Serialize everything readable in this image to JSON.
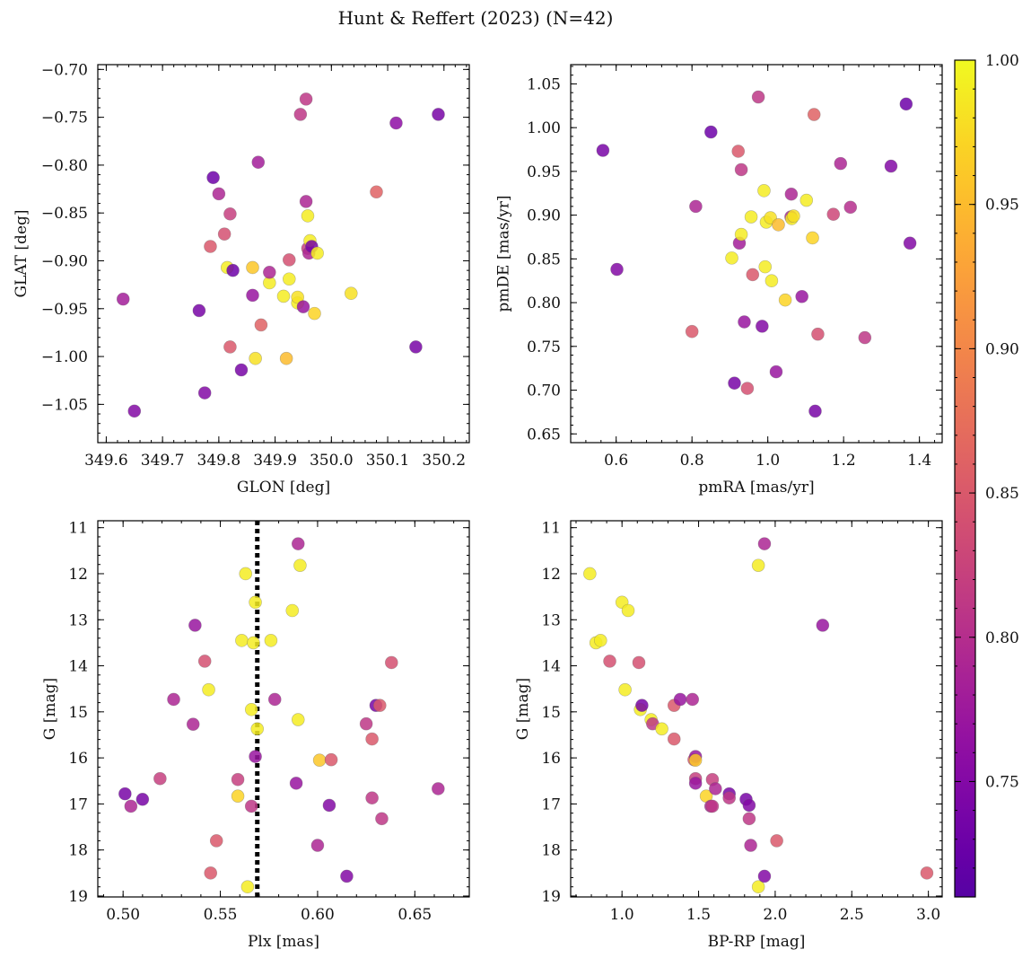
{
  "figure": {
    "title": "Hunt & Reffert (2023) (N=42)"
  },
  "colorbar": {
    "colormap": "plasma",
    "range": [
      0.71,
      1.0
    ],
    "ticks": [
      0.75,
      0.8,
      0.85,
      0.9,
      0.95,
      1.0
    ],
    "tick_labels": [
      "0.75",
      "0.80",
      "0.85",
      "0.90",
      "0.95",
      "1.00"
    ]
  },
  "chart_data": [
    {
      "type": "scatter",
      "id": "glon-glat",
      "xlabel": "GLON [deg]",
      "ylabel": "GLAT [deg]",
      "xlim": [
        349.585,
        350.245
      ],
      "ylim": [
        -1.09,
        -0.695
      ],
      "y_inverted": false,
      "xticks": [
        349.6,
        349.7,
        349.8,
        349.9,
        350.0,
        350.1,
        350.2
      ],
      "xtick_labels": [
        "349.6",
        "349.7",
        "349.8",
        "349.9",
        "350.0",
        "350.1",
        "350.2"
      ],
      "yticks": [
        -0.7,
        -0.75,
        -0.8,
        -0.85,
        -0.9,
        -0.95,
        -1.0,
        -1.05
      ],
      "ytick_labels": [
        "−0.70",
        "−0.75",
        "−0.80",
        "−0.85",
        "−0.90",
        "−0.95",
        "−1.00",
        "−1.05"
      ],
      "points": [
        {
          "x": 349.63,
          "y": -0.94,
          "c": 0.78
        },
        {
          "x": 349.65,
          "y": -1.057,
          "c": 0.75
        },
        {
          "x": 349.765,
          "y": -0.952,
          "c": 0.74
        },
        {
          "x": 349.775,
          "y": -1.038,
          "c": 0.75
        },
        {
          "x": 349.785,
          "y": -0.885,
          "c": 0.85
        },
        {
          "x": 349.79,
          "y": -0.813,
          "c": 0.73
        },
        {
          "x": 349.8,
          "y": -0.83,
          "c": 0.79
        },
        {
          "x": 349.81,
          "y": -0.872,
          "c": 0.84
        },
        {
          "x": 349.815,
          "y": -0.907,
          "c": 0.99
        },
        {
          "x": 349.82,
          "y": -0.851,
          "c": 0.82
        },
        {
          "x": 349.82,
          "y": -0.99,
          "c": 0.85
        },
        {
          "x": 349.825,
          "y": -0.91,
          "c": 0.73
        },
        {
          "x": 349.84,
          "y": -1.014,
          "c": 0.74
        },
        {
          "x": 349.86,
          "y": -0.936,
          "c": 0.77
        },
        {
          "x": 349.86,
          "y": -0.907,
          "c": 0.96
        },
        {
          "x": 349.865,
          "y": -1.002,
          "c": 0.98
        },
        {
          "x": 349.87,
          "y": -0.797,
          "c": 0.78
        },
        {
          "x": 349.875,
          "y": -0.967,
          "c": 0.86
        },
        {
          "x": 349.89,
          "y": -0.923,
          "c": 0.99
        },
        {
          "x": 349.89,
          "y": -0.912,
          "c": 0.79
        },
        {
          "x": 349.915,
          "y": -0.937,
          "c": 0.99
        },
        {
          "x": 349.92,
          "y": -1.002,
          "c": 0.95
        },
        {
          "x": 349.925,
          "y": -0.899,
          "c": 0.84
        },
        {
          "x": 349.925,
          "y": -0.919,
          "c": 0.99
        },
        {
          "x": 349.94,
          "y": -0.944,
          "c": 0.99
        },
        {
          "x": 349.94,
          "y": -0.938,
          "c": 0.98
        },
        {
          "x": 349.945,
          "y": -0.747,
          "c": 0.81
        },
        {
          "x": 349.95,
          "y": -0.948,
          "c": 0.77
        },
        {
          "x": 349.955,
          "y": -0.731,
          "c": 0.81
        },
        {
          "x": 349.955,
          "y": -0.838,
          "c": 0.79
        },
        {
          "x": 349.958,
          "y": -0.887,
          "c": 0.82
        },
        {
          "x": 349.958,
          "y": -0.853,
          "c": 0.99
        },
        {
          "x": 349.96,
          "y": -0.892,
          "c": 0.79
        },
        {
          "x": 349.962,
          "y": -0.879,
          "c": 0.99
        },
        {
          "x": 349.965,
          "y": -0.885,
          "c": 0.74
        },
        {
          "x": 349.97,
          "y": -0.955,
          "c": 0.97
        },
        {
          "x": 349.975,
          "y": -0.892,
          "c": 0.99
        },
        {
          "x": 350.035,
          "y": -0.934,
          "c": 0.98
        },
        {
          "x": 350.08,
          "y": -0.828,
          "c": 0.86
        },
        {
          "x": 350.115,
          "y": -0.756,
          "c": 0.76
        },
        {
          "x": 350.15,
          "y": -0.99,
          "c": 0.74
        },
        {
          "x": 350.19,
          "y": -0.747,
          "c": 0.74
        }
      ]
    },
    {
      "type": "scatter",
      "id": "pmra-pmde",
      "xlabel": "pmRA [mas/yr]",
      "ylabel": "pmDE [mas/yr]",
      "xlim": [
        0.48,
        1.46
      ],
      "ylim": [
        0.64,
        1.072
      ],
      "y_inverted": false,
      "xticks": [
        0.6,
        0.8,
        1.0,
        1.2,
        1.4
      ],
      "xtick_labels": [
        "0.6",
        "0.8",
        "1.0",
        "1.2",
        "1.4"
      ],
      "yticks": [
        0.65,
        0.7,
        0.75,
        0.8,
        0.85,
        0.9,
        0.95,
        1.0,
        1.05
      ],
      "ytick_labels": [
        "0.65",
        "0.70",
        "0.75",
        "0.80",
        "0.85",
        "0.90",
        "0.95",
        "1.00",
        "1.05"
      ],
      "points": [
        {
          "x": 0.565,
          "y": 0.974,
          "c": 0.74
        },
        {
          "x": 0.602,
          "y": 0.838,
          "c": 0.75
        },
        {
          "x": 0.8,
          "y": 0.767,
          "c": 0.85
        },
        {
          "x": 0.81,
          "y": 0.91,
          "c": 0.79
        },
        {
          "x": 0.85,
          "y": 0.995,
          "c": 0.73
        },
        {
          "x": 0.905,
          "y": 0.851,
          "c": 0.99
        },
        {
          "x": 0.912,
          "y": 0.708,
          "c": 0.74
        },
        {
          "x": 0.922,
          "y": 0.973,
          "c": 0.85
        },
        {
          "x": 0.925,
          "y": 0.868,
          "c": 0.78
        },
        {
          "x": 0.93,
          "y": 0.952,
          "c": 0.81
        },
        {
          "x": 0.93,
          "y": 0.878,
          "c": 0.99
        },
        {
          "x": 0.938,
          "y": 0.778,
          "c": 0.77
        },
        {
          "x": 0.946,
          "y": 0.702,
          "c": 0.84
        },
        {
          "x": 0.956,
          "y": 0.898,
          "c": 0.99
        },
        {
          "x": 0.96,
          "y": 0.832,
          "c": 0.85
        },
        {
          "x": 0.975,
          "y": 1.035,
          "c": 0.81
        },
        {
          "x": 0.985,
          "y": 0.773,
          "c": 0.75
        },
        {
          "x": 0.99,
          "y": 0.928,
          "c": 0.99
        },
        {
          "x": 0.993,
          "y": 0.841,
          "c": 0.99
        },
        {
          "x": 0.996,
          "y": 0.892,
          "c": 0.99
        },
        {
          "x": 1.007,
          "y": 0.897,
          "c": 0.98
        },
        {
          "x": 1.01,
          "y": 0.825,
          "c": 0.99
        },
        {
          "x": 1.022,
          "y": 0.721,
          "c": 0.77
        },
        {
          "x": 1.028,
          "y": 0.889,
          "c": 0.95
        },
        {
          "x": 1.046,
          "y": 0.803,
          "c": 0.97
        },
        {
          "x": 1.061,
          "y": 0.898,
          "c": 0.79
        },
        {
          "x": 1.062,
          "y": 0.924,
          "c": 0.79
        },
        {
          "x": 1.063,
          "y": 0.896,
          "c": 0.99
        },
        {
          "x": 1.068,
          "y": 0.899,
          "c": 0.98
        },
        {
          "x": 1.09,
          "y": 0.807,
          "c": 0.77
        },
        {
          "x": 1.102,
          "y": 0.917,
          "c": 0.99
        },
        {
          "x": 1.118,
          "y": 0.874,
          "c": 0.97
        },
        {
          "x": 1.122,
          "y": 1.015,
          "c": 0.86
        },
        {
          "x": 1.125,
          "y": 0.676,
          "c": 0.74
        },
        {
          "x": 1.132,
          "y": 0.764,
          "c": 0.84
        },
        {
          "x": 1.173,
          "y": 0.901,
          "c": 0.83
        },
        {
          "x": 1.192,
          "y": 0.959,
          "c": 0.79
        },
        {
          "x": 1.218,
          "y": 0.909,
          "c": 0.8
        },
        {
          "x": 1.256,
          "y": 0.76,
          "c": 0.81
        },
        {
          "x": 1.325,
          "y": 0.956,
          "c": 0.75
        },
        {
          "x": 1.365,
          "y": 1.027,
          "c": 0.73
        },
        {
          "x": 1.375,
          "y": 0.868,
          "c": 0.75
        }
      ]
    },
    {
      "type": "scatter",
      "id": "plx-g",
      "xlabel": "Plx [mas]",
      "ylabel": "G [mag]",
      "xlim": [
        0.487,
        0.678
      ],
      "ylim": [
        10.85,
        19.02
      ],
      "y_inverted": true,
      "reference_line": {
        "x": 0.569,
        "style": "dotted",
        "color": "#000000"
      },
      "xticks": [
        0.5,
        0.55,
        0.6,
        0.65
      ],
      "xtick_labels": [
        "0.50",
        "0.55",
        "0.60",
        "0.65"
      ],
      "yticks": [
        11,
        12,
        13,
        14,
        15,
        16,
        17,
        18,
        19
      ],
      "ytick_labels": [
        "11",
        "12",
        "13",
        "14",
        "15",
        "16",
        "17",
        "18",
        "19"
      ],
      "points": [
        {
          "x": 0.501,
          "y": 16.78,
          "c": 0.74
        },
        {
          "x": 0.504,
          "y": 17.05,
          "c": 0.79
        },
        {
          "x": 0.51,
          "y": 16.9,
          "c": 0.74
        },
        {
          "x": 0.519,
          "y": 16.45,
          "c": 0.82
        },
        {
          "x": 0.526,
          "y": 14.73,
          "c": 0.79
        },
        {
          "x": 0.536,
          "y": 15.27,
          "c": 0.79
        },
        {
          "x": 0.537,
          "y": 13.12,
          "c": 0.77
        },
        {
          "x": 0.542,
          "y": 13.9,
          "c": 0.84
        },
        {
          "x": 0.544,
          "y": 14.52,
          "c": 0.99
        },
        {
          "x": 0.545,
          "y": 18.5,
          "c": 0.85
        },
        {
          "x": 0.548,
          "y": 17.8,
          "c": 0.85
        },
        {
          "x": 0.559,
          "y": 16.47,
          "c": 0.82
        },
        {
          "x": 0.559,
          "y": 16.83,
          "c": 0.97
        },
        {
          "x": 0.561,
          "y": 13.45,
          "c": 0.99
        },
        {
          "x": 0.563,
          "y": 12.0,
          "c": 0.99
        },
        {
          "x": 0.564,
          "y": 18.8,
          "c": 0.99
        },
        {
          "x": 0.566,
          "y": 17.05,
          "c": 0.81
        },
        {
          "x": 0.567,
          "y": 13.5,
          "c": 0.99
        },
        {
          "x": 0.566,
          "y": 14.95,
          "c": 0.99
        },
        {
          "x": 0.568,
          "y": 12.62,
          "c": 0.99
        },
        {
          "x": 0.568,
          "y": 15.97,
          "c": 0.77
        },
        {
          "x": 0.569,
          "y": 15.37,
          "c": 0.99
        },
        {
          "x": 0.576,
          "y": 13.45,
          "c": 0.99
        },
        {
          "x": 0.578,
          "y": 14.73,
          "c": 0.79
        },
        {
          "x": 0.587,
          "y": 12.8,
          "c": 0.99
        },
        {
          "x": 0.589,
          "y": 16.55,
          "c": 0.77
        },
        {
          "x": 0.59,
          "y": 15.17,
          "c": 0.99
        },
        {
          "x": 0.59,
          "y": 11.35,
          "c": 0.79
        },
        {
          "x": 0.591,
          "y": 11.82,
          "c": 0.99
        },
        {
          "x": 0.6,
          "y": 17.9,
          "c": 0.79
        },
        {
          "x": 0.601,
          "y": 16.05,
          "c": 0.96
        },
        {
          "x": 0.606,
          "y": 17.03,
          "c": 0.75
        },
        {
          "x": 0.607,
          "y": 16.04,
          "c": 0.85
        },
        {
          "x": 0.615,
          "y": 18.57,
          "c": 0.75
        },
        {
          "x": 0.625,
          "y": 15.26,
          "c": 0.81
        },
        {
          "x": 0.628,
          "y": 15.59,
          "c": 0.85
        },
        {
          "x": 0.628,
          "y": 16.87,
          "c": 0.81
        },
        {
          "x": 0.63,
          "y": 14.86,
          "c": 0.74
        },
        {
          "x": 0.632,
          "y": 14.86,
          "c": 0.85
        },
        {
          "x": 0.633,
          "y": 17.32,
          "c": 0.81
        },
        {
          "x": 0.638,
          "y": 13.93,
          "c": 0.84
        },
        {
          "x": 0.662,
          "y": 16.67,
          "c": 0.79
        }
      ]
    },
    {
      "type": "scatter",
      "id": "bprp-g",
      "xlabel": "BP-RP [mag]",
      "ylabel": "G [mag]",
      "xlim": [
        0.665,
        3.09
      ],
      "ylim": [
        10.85,
        19.02
      ],
      "y_inverted": true,
      "xticks": [
        1.0,
        1.5,
        2.0,
        2.5,
        3.0
      ],
      "xtick_labels": [
        "1.0",
        "1.5",
        "2.0",
        "2.5",
        "3.0"
      ],
      "yticks": [
        11,
        12,
        13,
        14,
        15,
        16,
        17,
        18,
        19
      ],
      "ytick_labels": [
        "11",
        "12",
        "13",
        "14",
        "15",
        "16",
        "17",
        "18",
        "19"
      ],
      "points": [
        {
          "x": 0.79,
          "y": 12.0,
          "c": 0.99
        },
        {
          "x": 0.83,
          "y": 13.5,
          "c": 0.99
        },
        {
          "x": 0.86,
          "y": 13.45,
          "c": 0.99
        },
        {
          "x": 0.92,
          "y": 13.9,
          "c": 0.84
        },
        {
          "x": 1.0,
          "y": 12.62,
          "c": 0.99
        },
        {
          "x": 1.02,
          "y": 14.52,
          "c": 0.99
        },
        {
          "x": 1.04,
          "y": 12.8,
          "c": 0.99
        },
        {
          "x": 1.11,
          "y": 13.93,
          "c": 0.84
        },
        {
          "x": 1.12,
          "y": 14.95,
          "c": 0.99
        },
        {
          "x": 1.13,
          "y": 14.86,
          "c": 0.74
        },
        {
          "x": 1.19,
          "y": 15.17,
          "c": 0.99
        },
        {
          "x": 1.2,
          "y": 15.26,
          "c": 0.81
        },
        {
          "x": 1.26,
          "y": 15.37,
          "c": 0.99
        },
        {
          "x": 1.34,
          "y": 14.86,
          "c": 0.85
        },
        {
          "x": 1.34,
          "y": 15.59,
          "c": 0.85
        },
        {
          "x": 1.38,
          "y": 14.73,
          "c": 0.77
        },
        {
          "x": 1.46,
          "y": 14.73,
          "c": 0.79
        },
        {
          "x": 1.47,
          "y": 16.04,
          "c": 0.85
        },
        {
          "x": 1.48,
          "y": 15.97,
          "c": 0.77
        },
        {
          "x": 1.48,
          "y": 16.05,
          "c": 0.96
        },
        {
          "x": 1.48,
          "y": 16.45,
          "c": 0.82
        },
        {
          "x": 1.48,
          "y": 16.55,
          "c": 0.77
        },
        {
          "x": 1.55,
          "y": 16.83,
          "c": 0.97
        },
        {
          "x": 1.58,
          "y": 17.05,
          "c": 0.79
        },
        {
          "x": 1.59,
          "y": 16.47,
          "c": 0.82
        },
        {
          "x": 1.59,
          "y": 17.05,
          "c": 0.81
        },
        {
          "x": 1.61,
          "y": 16.67,
          "c": 0.79
        },
        {
          "x": 1.7,
          "y": 16.78,
          "c": 0.74
        },
        {
          "x": 1.7,
          "y": 16.87,
          "c": 0.81
        },
        {
          "x": 1.81,
          "y": 16.9,
          "c": 0.74
        },
        {
          "x": 1.83,
          "y": 17.03,
          "c": 0.75
        },
        {
          "x": 1.83,
          "y": 17.32,
          "c": 0.81
        },
        {
          "x": 1.84,
          "y": 17.9,
          "c": 0.79
        },
        {
          "x": 1.89,
          "y": 11.82,
          "c": 0.99
        },
        {
          "x": 1.89,
          "y": 18.8,
          "c": 0.99
        },
        {
          "x": 1.93,
          "y": 11.35,
          "c": 0.79
        },
        {
          "x": 1.93,
          "y": 18.57,
          "c": 0.75
        },
        {
          "x": 2.01,
          "y": 17.8,
          "c": 0.85
        },
        {
          "x": 2.31,
          "y": 13.12,
          "c": 0.77
        },
        {
          "x": 2.99,
          "y": 18.5,
          "c": 0.85
        }
      ]
    }
  ]
}
